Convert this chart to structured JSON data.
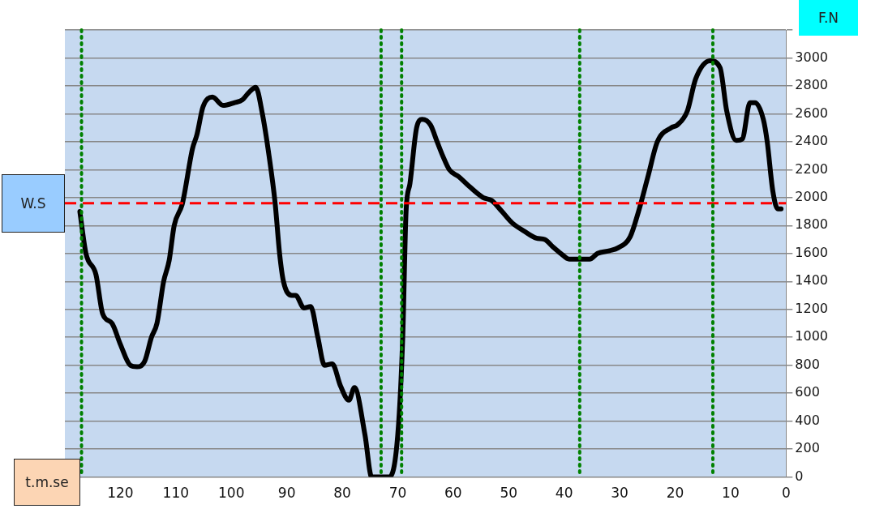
{
  "chart_data": {
    "type": "line",
    "xlabel": "t.m.se",
    "ylabel": "F.N",
    "x": [
      127.3,
      126.2,
      124.4,
      123.2,
      121.5,
      120,
      118.2,
      117,
      115.6,
      114.4,
      113.4,
      112.2,
      111.2,
      110.3,
      108.8,
      107,
      106.2,
      105.1,
      103.4,
      101.5,
      99.4,
      98,
      96.9,
      95.6,
      94.4,
      93.2,
      92.1,
      91.3,
      90.6,
      89.1,
      88.4,
      86.9,
      85.7,
      84.4,
      83.2,
      81.8,
      80.3,
      78.8,
      77.8,
      75.9,
      74.7,
      71.5,
      70,
      69.1,
      68.5,
      67.8,
      66.6,
      65.6,
      64.1,
      62.9,
      61.9,
      60.7,
      59,
      57.1,
      54.6,
      53.1,
      51.2,
      49.4,
      47.2,
      45,
      43.5,
      42.1,
      40.6,
      39.1,
      37.6,
      35.4,
      34,
      31.8,
      30.3,
      28.1,
      26.6,
      24.9,
      23.2,
      20.7,
      19.6,
      17.8,
      16.3,
      13.7,
      11.9,
      10.7,
      9,
      7.9,
      6.5,
      5.6,
      4.1,
      3.4,
      2.4,
      1.5,
      0.9
    ],
    "series": [
      {
        "color": "#000000",
        "values": [
          1900,
          1600,
          1450,
          1170,
          1100,
          950,
          800,
          790,
          830,
          1000,
          1100,
          1400,
          1550,
          1800,
          1960,
          2350,
          2450,
          2650,
          2720,
          2660,
          2680,
          2700,
          2750,
          2790,
          2600,
          2300,
          1960,
          1600,
          1400,
          1300,
          1300,
          1210,
          1220,
          1000,
          800,
          810,
          650,
          550,
          640,
          300,
          0,
          0,
          300,
          1000,
          1900,
          2100,
          2500,
          2560,
          2520,
          2400,
          2300,
          2200,
          2150,
          2080,
          2000,
          1980,
          1900,
          1820,
          1760,
          1710,
          1700,
          1650,
          1600,
          1560,
          1560,
          1560,
          1600,
          1620,
          1640,
          1720,
          1900,
          2150,
          2400,
          2500,
          2520,
          2620,
          2850,
          2980,
          2930,
          2620,
          2410,
          2420,
          2680,
          2680,
          2560,
          2400,
          2050,
          1920,
          1920
        ]
      }
    ],
    "xlim": [
      130,
      0
    ],
    "xticks": [
      120,
      110,
      100,
      90,
      80,
      70,
      60,
      50,
      40,
      30,
      20,
      10,
      0
    ],
    "ylim": [
      0,
      3200
    ],
    "yticks": [
      0,
      200,
      400,
      600,
      800,
      1000,
      1200,
      1400,
      1600,
      1800,
      2000,
      2200,
      2400,
      2600,
      2800,
      3000,
      {
        "value": 3200,
        "label": null
      }
    ],
    "ref_lines": [
      {
        "axis": "y",
        "value": 1960,
        "label": "W.S",
        "color": "#ff0000",
        "line_style": "dashed"
      },
      {
        "axis": "x",
        "value": 127,
        "color": "#008000",
        "line_style": "dotted"
      },
      {
        "axis": "x",
        "value": 73,
        "color": "#008000",
        "line_style": "dotted"
      },
      {
        "axis": "x",
        "value": 69.3,
        "color": "#008000",
        "line_style": "dotted"
      },
      {
        "axis": "x",
        "value": 37.2,
        "color": "#008000",
        "line_style": "dotted"
      },
      {
        "axis": "x",
        "value": 13.2,
        "color": "#008000",
        "line_style": "dotted"
      }
    ],
    "grid": "y",
    "legend": false,
    "marker": "none",
    "line_style": "solid"
  }
}
